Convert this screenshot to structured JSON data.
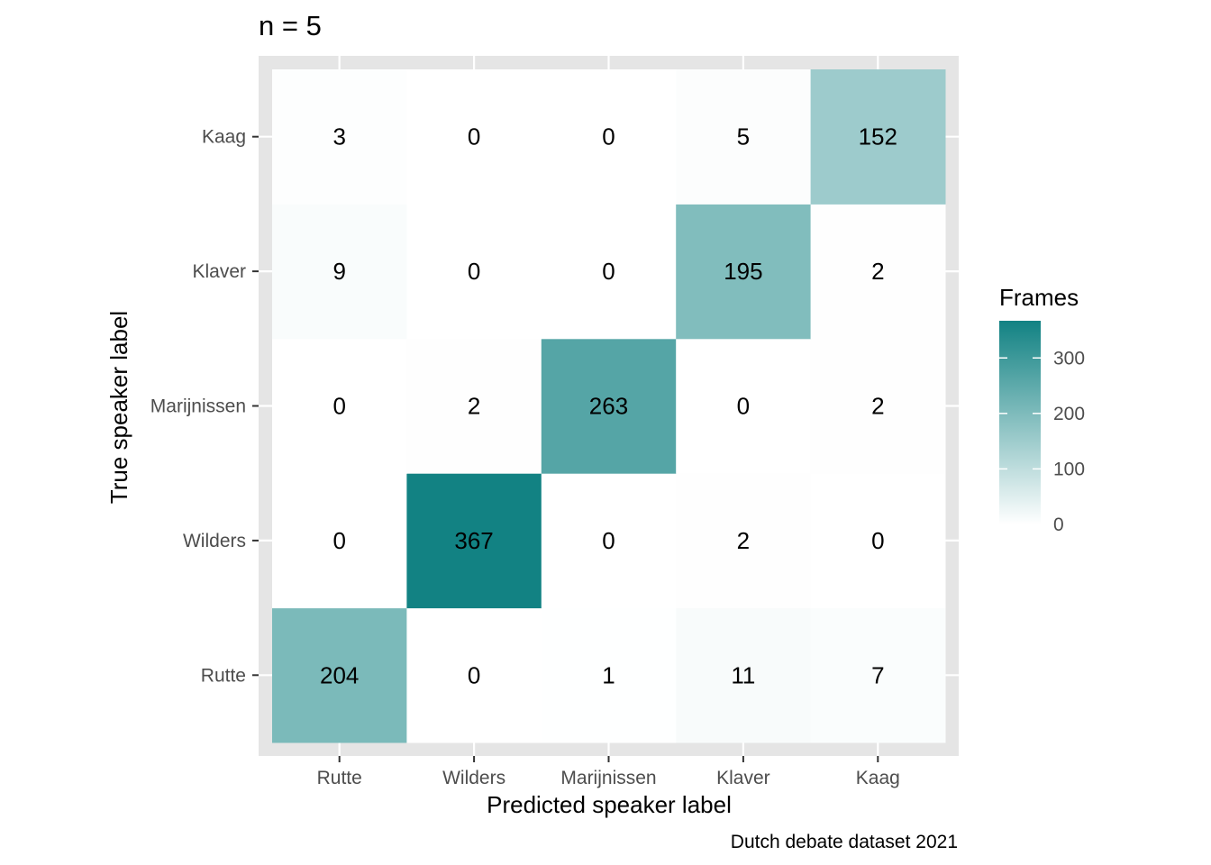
{
  "chart_data": {
    "type": "heatmap",
    "title": "n = 5",
    "xlabel": "Predicted speaker label",
    "ylabel": "True speaker label",
    "caption": "Dutch debate dataset 2021",
    "x_categories": [
      "Rutte",
      "Wilders",
      "Marijnissen",
      "Klaver",
      "Kaag"
    ],
    "y_categories": [
      "Rutte",
      "Wilders",
      "Marijnissen",
      "Klaver",
      "Kaag"
    ],
    "values": [
      [
        204,
        0,
        1,
        11,
        7
      ],
      [
        0,
        367,
        0,
        2,
        0
      ],
      [
        0,
        2,
        263,
        0,
        2
      ],
      [
        9,
        0,
        0,
        195,
        2
      ],
      [
        3,
        0,
        0,
        5,
        152
      ]
    ],
    "legend": {
      "title": "Frames",
      "ticks": [
        0,
        100,
        200,
        300
      ],
      "range": [
        0,
        367
      ],
      "placement": "right"
    },
    "color_low": "#ffffff",
    "color_high": "#128283",
    "panel_background": "#e5e5e5",
    "grid": true
  }
}
